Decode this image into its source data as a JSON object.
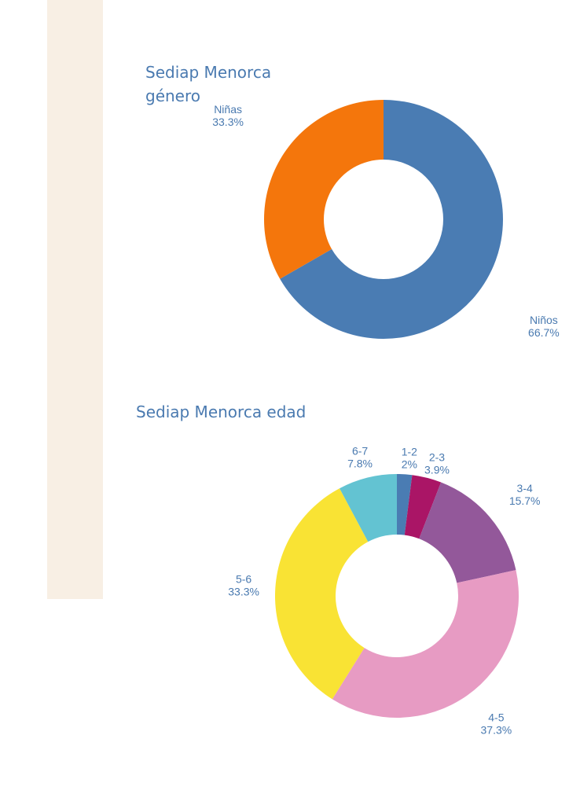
{
  "chart_data": [
    {
      "type": "pie",
      "title_line1": "Sediap Menorca",
      "title_line2": "género",
      "slices": [
        {
          "label": "Niños",
          "value": 66.7,
          "value_label": "66.7%",
          "color": "#4a7cb3"
        },
        {
          "label": "Niñas",
          "value": 33.3,
          "value_label": "33.3%",
          "color": "#f4760c"
        }
      ]
    },
    {
      "type": "pie",
      "title": "Sediap Menorca edad",
      "slices": [
        {
          "label": "1-2",
          "value": 2.0,
          "value_label": "2%",
          "color": "#4a7cb3"
        },
        {
          "label": "2-3",
          "value": 3.9,
          "value_label": "3.9%",
          "color": "#aa1566"
        },
        {
          "label": "3-4",
          "value": 15.7,
          "value_label": "15.7%",
          "color": "#93589a"
        },
        {
          "label": "4-5",
          "value": 37.3,
          "value_label": "37.3%",
          "color": "#e79bc3"
        },
        {
          "label": "5-6",
          "value": 33.3,
          "value_label": "33.3%",
          "color": "#f9e334"
        },
        {
          "label": "6-7",
          "value": 7.8,
          "value_label": "7.8%",
          "color": "#63c3d2"
        }
      ]
    }
  ]
}
